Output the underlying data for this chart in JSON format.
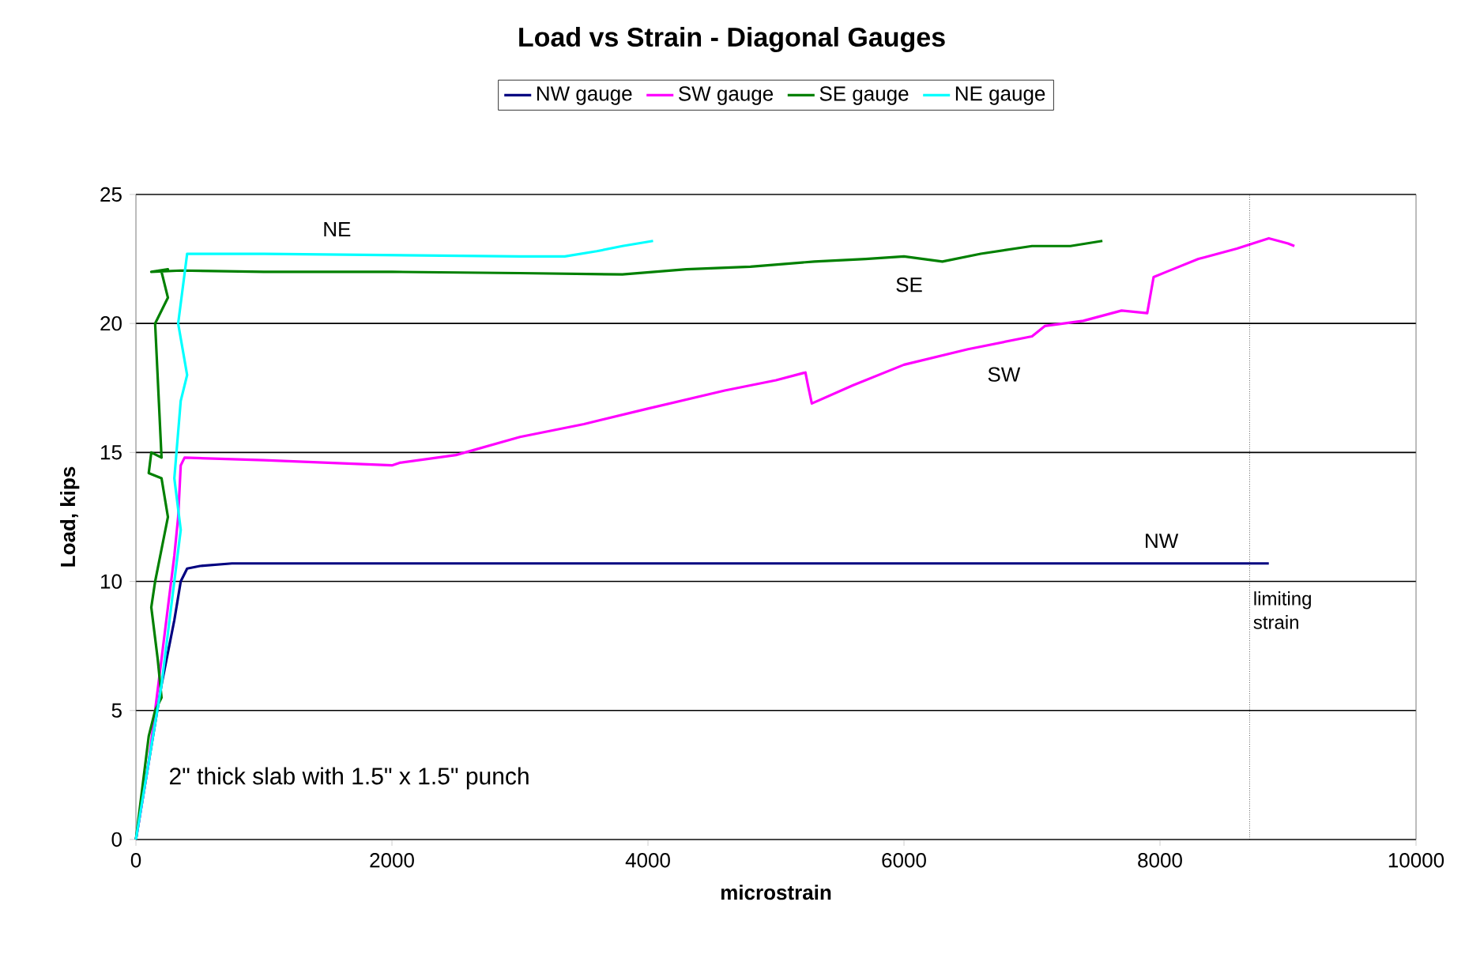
{
  "chart_data": {
    "type": "line",
    "title": "Load vs Strain - Diagonal Gauges",
    "xlabel": "microstrain",
    "ylabel": "Load, kips",
    "xlim": [
      0,
      10000
    ],
    "ylim": [
      0,
      25
    ],
    "xticks": [
      0,
      2000,
      4000,
      6000,
      8000,
      10000
    ],
    "yticks": [
      0,
      5,
      10,
      15,
      20,
      25
    ],
    "grid": "y",
    "legend": "top",
    "marker": "none",
    "line_style": "solid",
    "series": [
      {
        "name": "NW gauge",
        "color": "#000080",
        "x": [
          0,
          100,
          200,
          300,
          350,
          400,
          500,
          750,
          2000,
          4000,
          6000,
          8000,
          8850
        ],
        "values": [
          0,
          3,
          6,
          8.5,
          10,
          10.5,
          10.6,
          10.7,
          10.7,
          10.7,
          10.7,
          10.7,
          10.7
        ]
      },
      {
        "name": "SW gauge",
        "color": "#ff00ff",
        "x": [
          0,
          100,
          200,
          250,
          300,
          330,
          350,
          380,
          1000,
          1500,
          2000,
          2060,
          2500,
          3000,
          3500,
          4000,
          4600,
          5000,
          5230,
          5250,
          5280,
          5600,
          6000,
          6500,
          7000,
          7100,
          7400,
          7700,
          7900,
          7950,
          8050,
          8300,
          8600,
          8850,
          9000,
          9050
        ],
        "values": [
          0,
          3,
          7,
          9,
          11,
          12.5,
          14.5,
          14.8,
          14.7,
          14.6,
          14.5,
          14.6,
          14.9,
          15.6,
          16.1,
          16.7,
          17.4,
          17.8,
          18.1,
          17.6,
          16.9,
          17.6,
          18.4,
          19.0,
          19.5,
          19.9,
          20.1,
          20.5,
          20.4,
          21.8,
          22.0,
          22.5,
          22.9,
          23.3,
          23.1,
          23.0
        ]
      },
      {
        "name": "SE gauge",
        "color": "#008000",
        "x": [
          0,
          100,
          150,
          200,
          170,
          120,
          150,
          250,
          200,
          100,
          120,
          200,
          150,
          250,
          200,
          250,
          120,
          350,
          1000,
          2000,
          3000,
          3800,
          4300,
          4800,
          5300,
          5700,
          6000,
          6300,
          6600,
          7000,
          7300,
          7550
        ],
        "values": [
          0,
          4,
          5,
          5.5,
          7,
          9,
          10,
          12.5,
          14,
          14.2,
          15,
          14.8,
          20,
          21,
          22,
          22.1,
          22,
          22.05,
          22.0,
          22.0,
          21.95,
          21.9,
          22.1,
          22.2,
          22.4,
          22.5,
          22.6,
          22.4,
          22.7,
          23.0,
          23.0,
          23.2
        ]
      },
      {
        "name": "NE gauge",
        "color": "#00ffff",
        "x": [
          0,
          100,
          200,
          250,
          300,
          350,
          300,
          350,
          400,
          330,
          400,
          450,
          1000,
          2000,
          3000,
          3350,
          3600,
          3800,
          4040
        ],
        "values": [
          0,
          3,
          6,
          8,
          10,
          12,
          14,
          17,
          18,
          20,
          22.7,
          22.7,
          22.7,
          22.65,
          22.6,
          22.6,
          22.8,
          23.0,
          23.2
        ]
      }
    ],
    "ref_lines": [
      {
        "axis": "x",
        "value": 8700,
        "label": "limiting strain",
        "color": "#000000",
        "line_style": "dotted"
      }
    ],
    "annotations": [
      "NE",
      "SE",
      "SW",
      "NW",
      "2\" thick slab with 1.5\" x 1.5\" punch"
    ]
  }
}
